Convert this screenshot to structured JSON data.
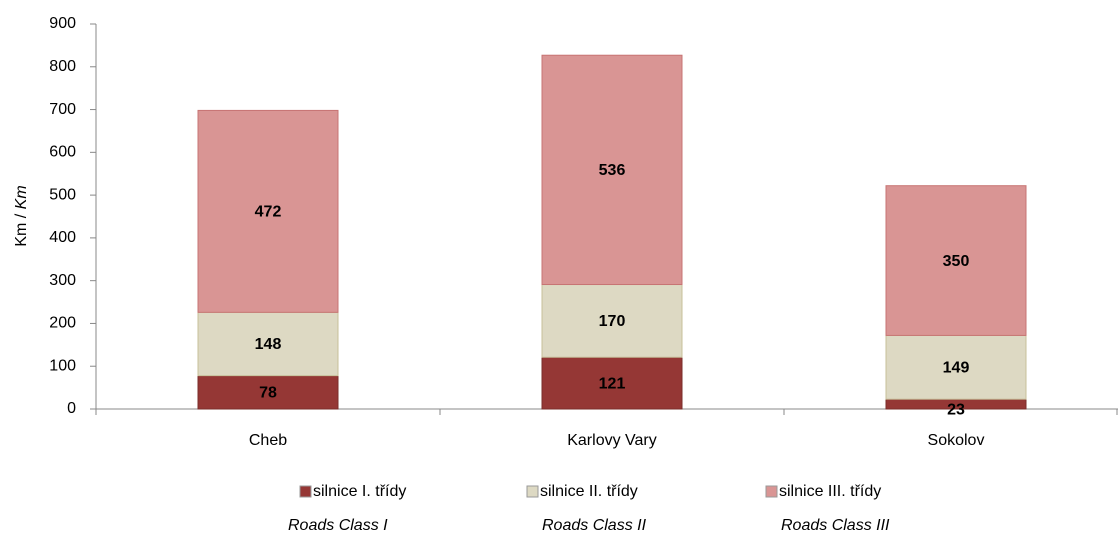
{
  "chart_data": {
    "type": "stacked_bar",
    "y_label": {
      "upright": "Km /",
      "italic": "Km"
    },
    "categories": [
      "Cheb",
      "Karlovy Vary",
      "Sokolov"
    ],
    "series": [
      {
        "name": "silnice I. třídy",
        "name_en": "Roads Class I",
        "color": "#953735",
        "values": [
          78,
          121,
          23
        ]
      },
      {
        "name": "silnice II. třídy",
        "name_en": "Roads Class II",
        "color": "#ddd9c3",
        "values": [
          148,
          170,
          149
        ]
      },
      {
        "name": "silnice III. třídy",
        "name_en": "Roads Class III",
        "color": "#d99594",
        "values": [
          472,
          536,
          350
        ]
      }
    ],
    "ylim": [
      0,
      900
    ],
    "yticks": [
      0,
      100,
      200,
      300,
      400,
      500,
      600,
      700,
      800,
      900
    ]
  }
}
